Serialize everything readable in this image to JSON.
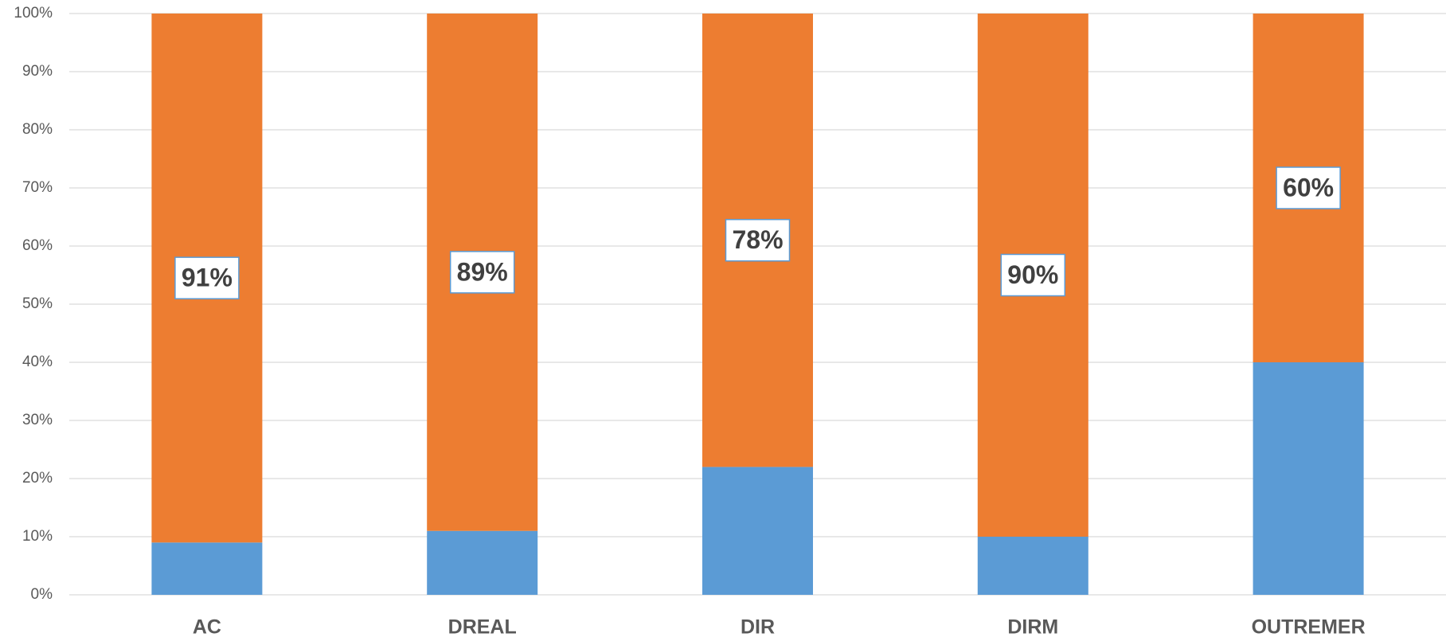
{
  "chart_data": {
    "type": "stacked_bar",
    "categories": [
      "AC",
      "DREAL",
      "DIR",
      "DIRM",
      "OUTREMER"
    ],
    "series": [
      {
        "color": "#5b9bd5",
        "values": [
          9,
          11,
          22,
          10,
          40
        ]
      },
      {
        "color": "#ed7d31",
        "values": [
          91,
          89,
          78,
          90,
          60
        ],
        "value_labels": [
          "91%",
          "89%",
          "78%",
          "90%",
          "60%"
        ]
      }
    ],
    "ylim": [
      0,
      100
    ],
    "yticks": [
      {
        "value": 0,
        "label": "0%"
      },
      {
        "value": 10,
        "label": "10%"
      },
      {
        "value": 20,
        "label": "20%"
      },
      {
        "value": 30,
        "label": "30%"
      },
      {
        "value": 40,
        "label": "40%"
      },
      {
        "value": 50,
        "label": "50%"
      },
      {
        "value": 60,
        "label": "60%"
      },
      {
        "value": 70,
        "label": "70%"
      },
      {
        "value": 80,
        "label": "80%"
      },
      {
        "value": 90,
        "label": "90%"
      },
      {
        "value": 100,
        "label": "100%"
      }
    ],
    "grid": true
  }
}
